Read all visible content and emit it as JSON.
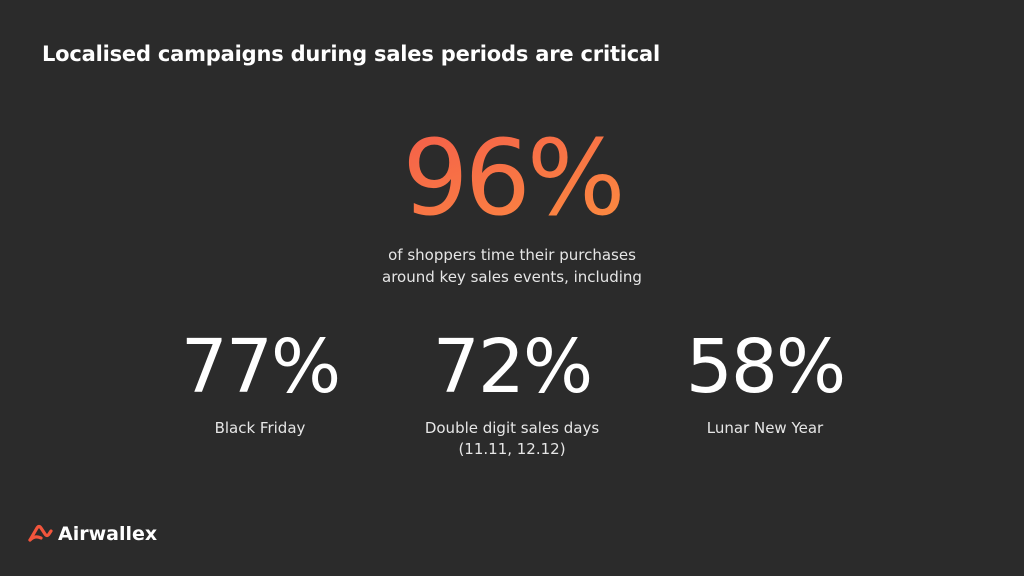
{
  "header": {
    "title": "Localised campaigns during sales periods are critical"
  },
  "hero": {
    "value": "96%",
    "caption": [
      "of shoppers time their purchases",
      "around key sales events, including"
    ]
  },
  "stats": [
    {
      "value": "77%",
      "label": [
        "Black Friday"
      ]
    },
    {
      "value": "72%",
      "label": [
        "Double digit sales days",
        "(11.11, 12.12)"
      ]
    },
    {
      "value": "58%",
      "label": [
        "Lunar New Year"
      ]
    }
  ],
  "footer": {
    "brand": "Airwallex"
  }
}
